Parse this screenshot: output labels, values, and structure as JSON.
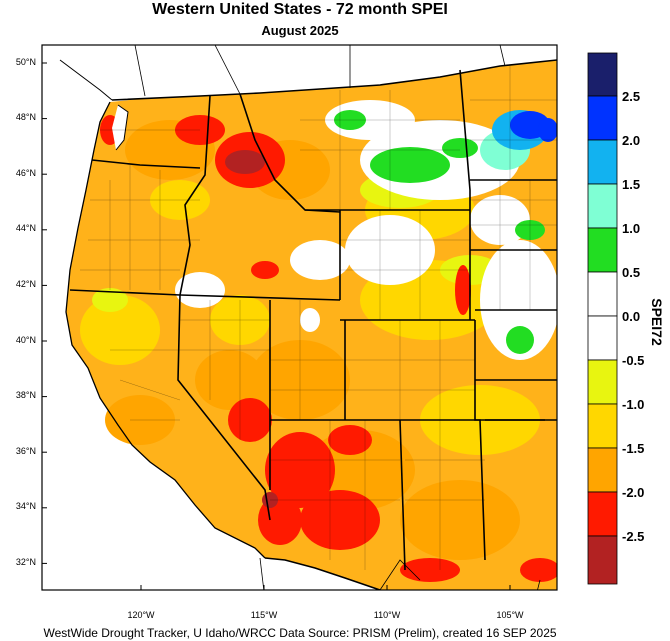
{
  "title": "Western United States - 72 month SPEI",
  "subtitle": "August 2025",
  "footer": "WestWide Drought Tracker, U Idaho/WRCC Data Source: PRISM (Prelim), created 16 SEP 2025",
  "lat_labels": [
    "50°N",
    "48°N",
    "46°N",
    "44°N",
    "42°N",
    "40°N",
    "38°N",
    "36°N",
    "34°N",
    "32°N"
  ],
  "lon_labels": [
    "120°W",
    "115°W",
    "110°W",
    "105°W"
  ],
  "colorbar": {
    "title": "SPEI72",
    "labels": [
      "2.5",
      "2.0",
      "1.5",
      "1.0",
      "0.5",
      "0.0",
      "-0.5",
      "-1.0",
      "-1.5",
      "-2.0",
      "-2.5"
    ],
    "colors": [
      "#1a1f6b",
      "#0033ff",
      "#12b2f0",
      "#7fffd4",
      "#22dd22",
      "#ffffff",
      "#ffffff",
      "#e8f510",
      "#ffd700",
      "#ffa500",
      "#ff1a00",
      "#b22222"
    ]
  }
}
